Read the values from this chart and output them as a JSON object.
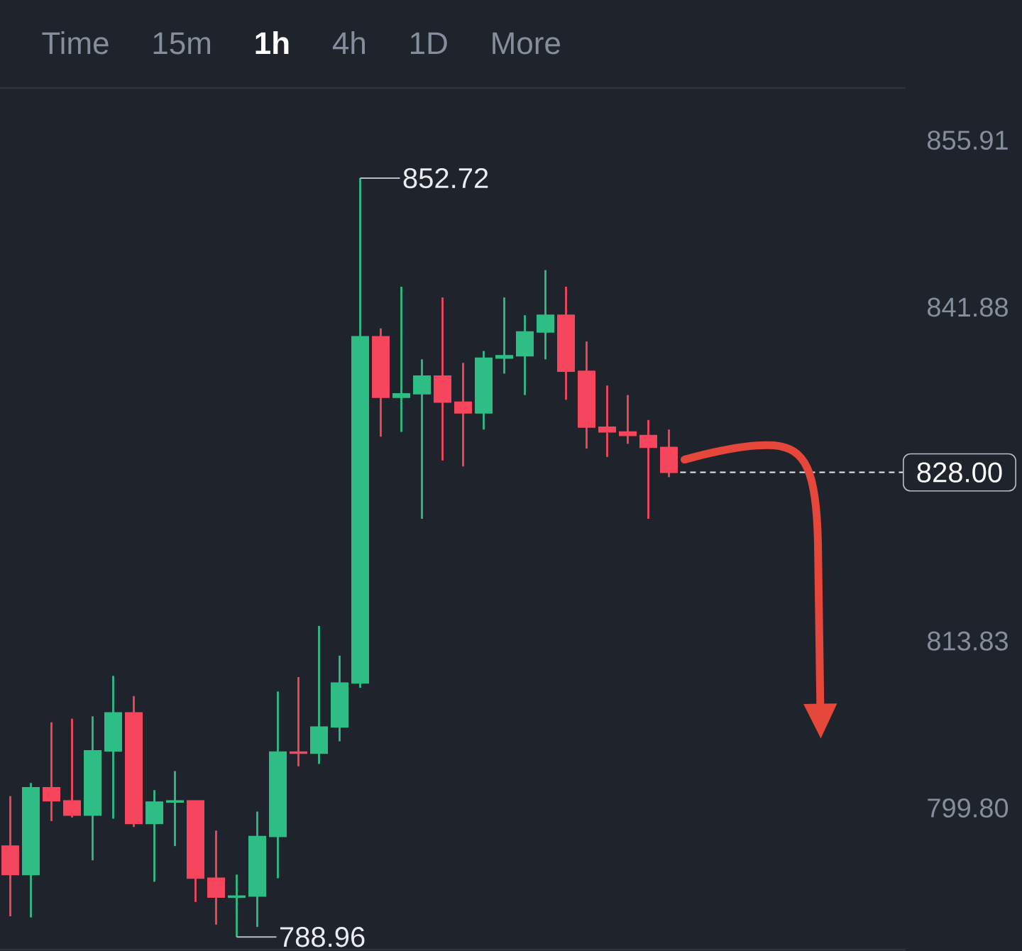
{
  "chart_data": {
    "type": "candlestick",
    "categories": [
      null,
      null,
      null,
      null,
      null,
      null,
      null,
      null,
      null,
      null,
      null,
      null,
      null,
      null,
      null,
      null,
      null,
      null,
      null,
      null,
      null,
      null,
      null,
      null,
      null,
      null,
      null,
      null,
      null,
      null,
      null,
      null,
      null,
      null,
      null,
      null,
      null,
      null,
      null,
      null,
      null,
      null,
      null,
      null
    ],
    "ohlc": [
      [
        796.6,
        800.8,
        790.7,
        794.2
      ],
      [
        794.2,
        801.9,
        790.6,
        801.5
      ],
      [
        801.5,
        807.0,
        798.7,
        800.4
      ],
      [
        800.4,
        807.3,
        799.0,
        799.2
      ],
      [
        799.2,
        807.5,
        795.4,
        804.6
      ],
      [
        804.6,
        810.9,
        798.9,
        807.8
      ],
      [
        807.8,
        809.2,
        798.2,
        798.5
      ],
      [
        798.5,
        801.3,
        793.6,
        800.3
      ],
      [
        800.3,
        802.9,
        796.6,
        800.4
      ],
      [
        800.4,
        800.4,
        791.9,
        793.9
      ],
      [
        793.9,
        797.9,
        790.0,
        792.3
      ],
      [
        792.3,
        794.2,
        788.96,
        792.4
      ],
      [
        792.4,
        799.5,
        789.8,
        797.4
      ],
      [
        797.4,
        809.6,
        793.9,
        804.5
      ],
      [
        804.5,
        810.8,
        803.3,
        804.4
      ],
      [
        804.4,
        815.1,
        803.5,
        806.6
      ],
      [
        806.6,
        812.6,
        805.4,
        810.3
      ],
      [
        810.3,
        852.72,
        809.9,
        839.4
      ],
      [
        839.4,
        840.1,
        831.0,
        834.3
      ],
      [
        834.3,
        843.6,
        831.4,
        834.6
      ],
      [
        834.6,
        837.5,
        824.1,
        836.1
      ],
      [
        836.1,
        842.7,
        829.0,
        833.9
      ],
      [
        833.9,
        837.2,
        828.5,
        833.0
      ],
      [
        833.0,
        838.2,
        831.6,
        837.6
      ],
      [
        837.6,
        842.7,
        836.3,
        837.8
      ],
      [
        837.8,
        841.2,
        834.5,
        839.8
      ],
      [
        839.8,
        845.0,
        837.5,
        841.2
      ],
      [
        841.2,
        843.6,
        834.1,
        836.5
      ],
      [
        836.5,
        839.0,
        830.0,
        831.8
      ],
      [
        831.8,
        835.3,
        829.3,
        831.4
      ],
      [
        831.4,
        834.5,
        830.4,
        831.1
      ],
      [
        831.1,
        832.4,
        824.1,
        830.1
      ],
      [
        830.1,
        831.6,
        827.6,
        828.0
      ],
      null,
      null,
      null,
      null,
      null,
      null,
      null,
      null,
      null,
      null,
      null
    ],
    "colors": [
      "#f6465d",
      "#2ebd85",
      "#f6465d",
      "#f6465d",
      "#2ebd85",
      "#2ebd85",
      "#f6465d",
      "#2ebd85",
      "#2ebd85",
      "#f6465d",
      "#f6465d",
      "#2ebd85",
      "#2ebd85",
      "#2ebd85",
      "#f6465d",
      "#2ebd85",
      "#2ebd85",
      "#2ebd85",
      "#f6465d",
      "#2ebd85",
      "#2ebd85",
      "#f6465d",
      "#f6465d",
      "#2ebd85",
      "#2ebd85",
      "#2ebd85",
      "#2ebd85",
      "#f6465d",
      "#f6465d",
      "#f6465d",
      "#f6465d",
      "#f6465d",
      "#f6465d",
      null,
      null,
      null,
      null,
      null,
      null,
      null,
      null,
      null,
      null,
      null
    ],
    "ylim": [
      787.9,
      860.3
    ],
    "yticks": [
      855.91,
      841.88,
      813.83,
      {
        "value": 799.8,
        "label": "799.80"
      }
    ],
    "tick_labels": "y",
    "ref_lines": [
      {
        "axis": "y",
        "value": 828.0,
        "label": "828.00",
        "color": "#eaecef",
        "line_style": "dashed"
      }
    ],
    "annotations": [
      "Time",
      "15m",
      "1h",
      "4h",
      "1D",
      "More",
      "852.72",
      "788.96"
    ]
  }
}
